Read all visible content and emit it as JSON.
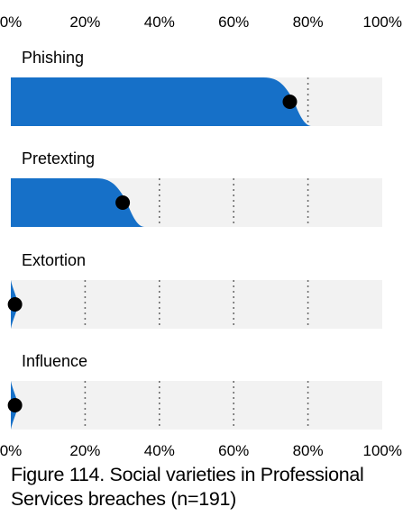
{
  "chart_data": {
    "type": "area",
    "title": "Figure 114. Social varieties in Professional Services breaches (n=191)",
    "xlim": [
      0,
      100
    ],
    "x_ticks": [
      "0%",
      "20%",
      "40%",
      "60%",
      "80%",
      "100%"
    ],
    "grid": true,
    "categories": [
      {
        "name": "Phishing",
        "value": 75,
        "interval": [
          68,
          81
        ]
      },
      {
        "name": "Pretexting",
        "value": 30,
        "interval": [
          23,
          36
        ]
      },
      {
        "name": "Extortion",
        "value": 1,
        "interval": [
          0,
          2
        ]
      },
      {
        "name": "Influence",
        "value": 1,
        "interval": [
          0,
          2
        ]
      }
    ]
  },
  "colors": {
    "fill": "#1670c8",
    "track": "#f2f2f2",
    "dot": "#000000",
    "grid": "#6e6e6e"
  }
}
